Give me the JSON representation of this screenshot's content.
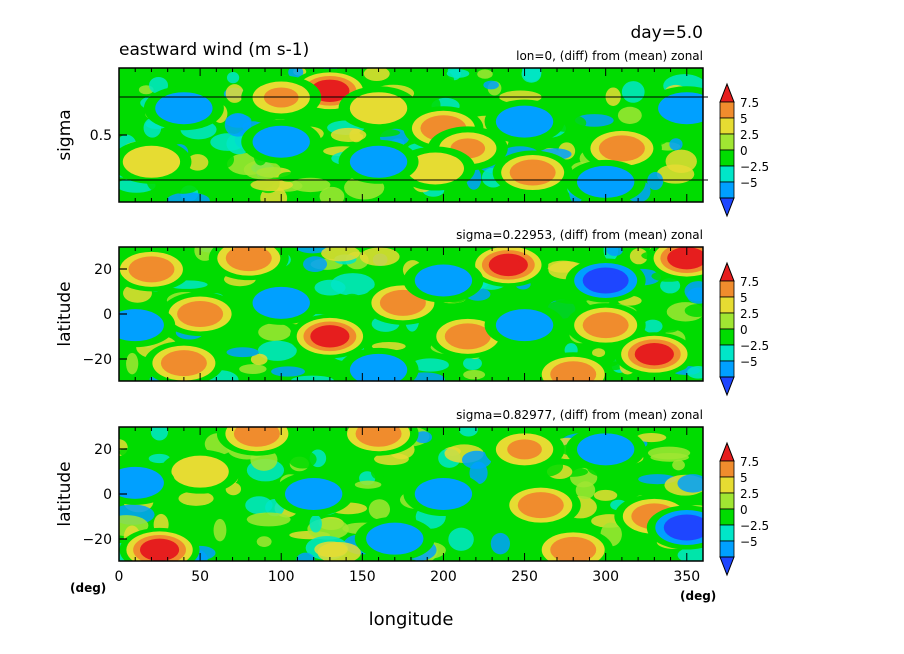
{
  "figure": {
    "day_label": "day=5.0",
    "xlabel": "longitude",
    "x_unit_left": "(deg)",
    "x_unit_right": "(deg)",
    "x_ticks": [
      "0",
      "50",
      "100",
      "150",
      "200",
      "250",
      "300",
      "350"
    ]
  },
  "colors": {
    "levels": [
      "#1e46ff",
      "#00a0ff",
      "#00e6c8",
      "#00dc00",
      "#a0e632",
      "#e6dc32",
      "#f08c2d",
      "#e61e1e"
    ]
  },
  "chart_data": [
    {
      "type": "heatmap",
      "title": "eastward wind (m s-1)",
      "subtitle": "lon=0, (diff) from (mean) zonal",
      "ylabel": "sigma",
      "xlim": [
        0,
        360
      ],
      "ylim": [
        0,
        1
      ],
      "y_ticks": [
        "0.5"
      ],
      "colorbar_labels": [
        "7.5",
        "5",
        "2.5",
        "0",
        "−2.5",
        "−5"
      ],
      "reference_lines_sigma": [
        0.1,
        0.85
      ],
      "hotspots": [
        {
          "x": 130,
          "y": 0.17,
          "v": 8
        },
        {
          "x": 100,
          "y": 0.22,
          "v": 5
        },
        {
          "x": 160,
          "y": 0.3,
          "v": 4
        },
        {
          "x": 200,
          "y": 0.45,
          "v": 6
        },
        {
          "x": 215,
          "y": 0.6,
          "v": 5
        },
        {
          "x": 195,
          "y": 0.75,
          "v": 4
        },
        {
          "x": 255,
          "y": 0.78,
          "v": 7
        },
        {
          "x": 310,
          "y": 0.6,
          "v": 7
        },
        {
          "x": 40,
          "y": 0.3,
          "v": -5
        },
        {
          "x": 100,
          "y": 0.55,
          "v": -5
        },
        {
          "x": 160,
          "y": 0.7,
          "v": -4
        },
        {
          "x": 250,
          "y": 0.4,
          "v": -4
        },
        {
          "x": 350,
          "y": 0.3,
          "v": -5
        },
        {
          "x": 20,
          "y": 0.7,
          "v": 3
        },
        {
          "x": 300,
          "y": 0.85,
          "v": -4
        }
      ]
    },
    {
      "type": "heatmap",
      "title": "",
      "subtitle": "sigma=0.22953, (diff) from (mean) zonal",
      "ylabel": "latitude",
      "xlim": [
        0,
        360
      ],
      "ylim": [
        -30,
        30
      ],
      "y_ticks": [
        "20",
        "0",
        "−20"
      ],
      "colorbar_labels": [
        "7.5",
        "5",
        "2.5",
        "0",
        "−2.5",
        "−5"
      ],
      "hotspots": [
        {
          "x": 20,
          "y": 20,
          "v": 7
        },
        {
          "x": 50,
          "y": 0,
          "v": 6
        },
        {
          "x": 80,
          "y": 25,
          "v": 7
        },
        {
          "x": 130,
          "y": -10,
          "v": 8
        },
        {
          "x": 175,
          "y": 5,
          "v": 7
        },
        {
          "x": 215,
          "y": -10,
          "v": 7
        },
        {
          "x": 240,
          "y": 22,
          "v": 8
        },
        {
          "x": 300,
          "y": -5,
          "v": 6
        },
        {
          "x": 330,
          "y": -18,
          "v": 8
        },
        {
          "x": 350,
          "y": 25,
          "v": 8
        },
        {
          "x": 40,
          "y": -22,
          "v": 6
        },
        {
          "x": 280,
          "y": -27,
          "v": 6
        },
        {
          "x": 300,
          "y": 15,
          "v": -6
        },
        {
          "x": 100,
          "y": 5,
          "v": -5
        },
        {
          "x": 200,
          "y": 15,
          "v": -5
        },
        {
          "x": 250,
          "y": -5,
          "v": -5
        },
        {
          "x": 10,
          "y": -5,
          "v": -5
        },
        {
          "x": 160,
          "y": -25,
          "v": -5
        }
      ]
    },
    {
      "type": "heatmap",
      "title": "",
      "subtitle": "sigma=0.82977, (diff) from (mean) zonal",
      "ylabel": "latitude",
      "xlim": [
        0,
        360
      ],
      "ylim": [
        -30,
        30
      ],
      "y_ticks": [
        "20",
        "0",
        "−20"
      ],
      "colorbar_labels": [
        "7.5",
        "5",
        "2.5",
        "0",
        "−2.5",
        "−5"
      ],
      "hotspots": [
        {
          "x": 25,
          "y": -25,
          "v": 8
        },
        {
          "x": 85,
          "y": 27,
          "v": 7
        },
        {
          "x": 160,
          "y": 27,
          "v": 7
        },
        {
          "x": 260,
          "y": -5,
          "v": 7
        },
        {
          "x": 280,
          "y": -25,
          "v": 6
        },
        {
          "x": 330,
          "y": -10,
          "v": 7
        },
        {
          "x": 250,
          "y": 20,
          "v": 5
        },
        {
          "x": 50,
          "y": 10,
          "v": 4
        },
        {
          "x": 120,
          "y": 0,
          "v": -4
        },
        {
          "x": 200,
          "y": 0,
          "v": -4
        },
        {
          "x": 350,
          "y": -15,
          "v": -6
        },
        {
          "x": 10,
          "y": 5,
          "v": -4
        },
        {
          "x": 300,
          "y": 20,
          "v": -4
        },
        {
          "x": 170,
          "y": -20,
          "v": -4
        }
      ]
    }
  ]
}
